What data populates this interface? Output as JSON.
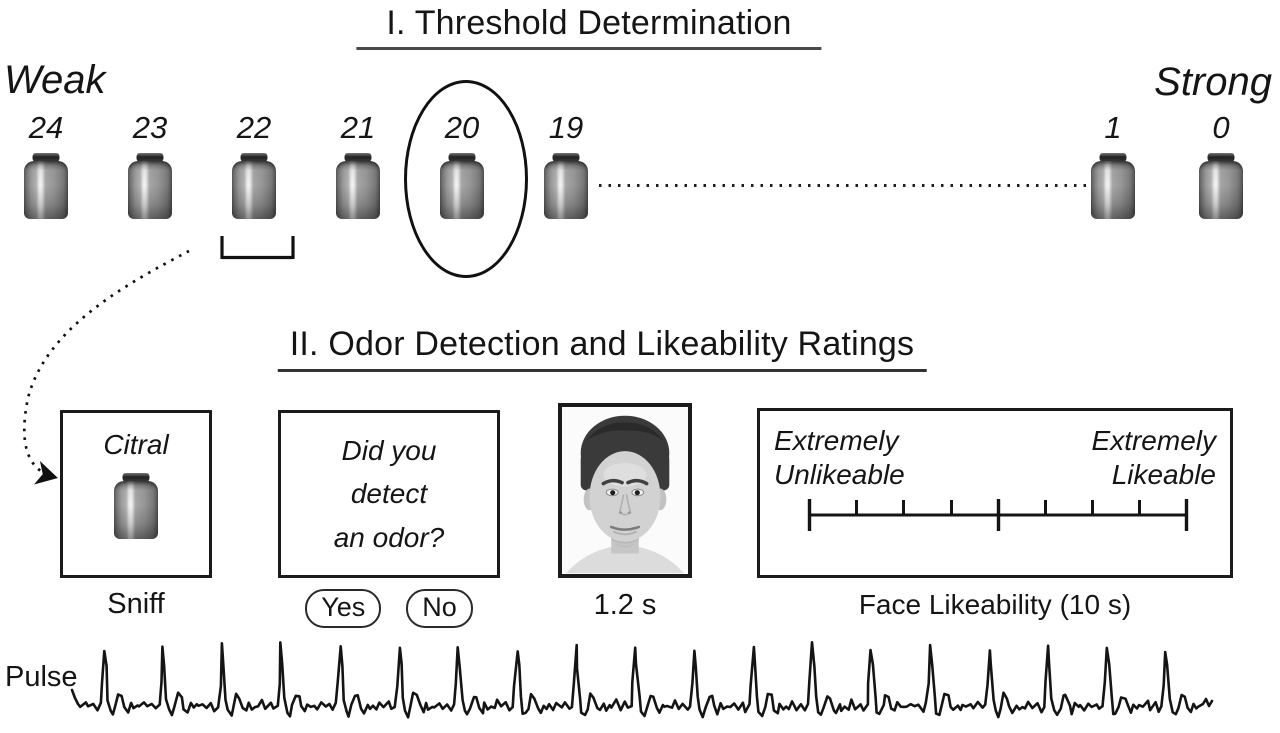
{
  "figure": {
    "ink_color": "#151515",
    "section1": {
      "title": "I. Threshold Determination",
      "weak": "Weak",
      "strong": "Strong",
      "vial_numbers": [
        "24",
        "23",
        "22",
        "21",
        "20",
        "19",
        "1",
        "0"
      ],
      "circled_vial": "20"
    },
    "section2": {
      "title": "II. Odor Detection and Likeability Ratings",
      "citral_label": "Citral",
      "sniff_caption": "Sniff",
      "detect_line1": "Did you",
      "detect_line2": "detect",
      "detect_line3": "an odor?",
      "yes_button": "Yes",
      "no_button": "No",
      "face_caption": "1.2 s",
      "scale_left_line1": "Extremely",
      "scale_left_line2": "Unlikeable",
      "scale_right_line1": "Extremely",
      "scale_right_line2": "Likeable",
      "scale_tick_count": 9,
      "scale_caption": "Face Likeability (10 s)"
    },
    "pulse_label": "Pulse"
  }
}
